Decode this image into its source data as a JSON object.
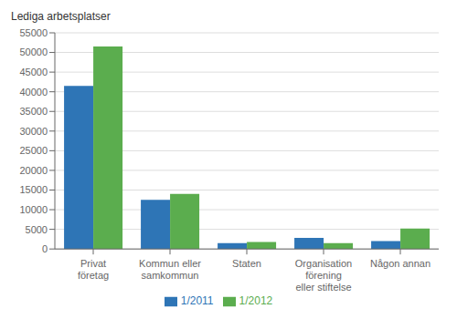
{
  "chart_data": {
    "type": "bar",
    "ylabel": "Lediga arbetsplatser",
    "categories": [
      "Privat\nföretag",
      "Kommun eller\nsamkommun",
      "Staten",
      "Organisation\nförening\neller stiftelse",
      "Någon annan"
    ],
    "series": [
      {
        "name": "1/2011",
        "color": "#2E75B6",
        "values": [
          41500,
          12500,
          1500,
          2800,
          2000
        ]
      },
      {
        "name": "1/2012",
        "color": "#5BAD4E",
        "values": [
          51500,
          14000,
          1800,
          1500,
          5200
        ]
      }
    ],
    "ylim": [
      0,
      55000
    ],
    "yticks": [
      0,
      5000,
      10000,
      15000,
      20000,
      25000,
      30000,
      35000,
      40000,
      45000,
      50000,
      55000
    ],
    "grid": true,
    "legend": "bottom"
  }
}
